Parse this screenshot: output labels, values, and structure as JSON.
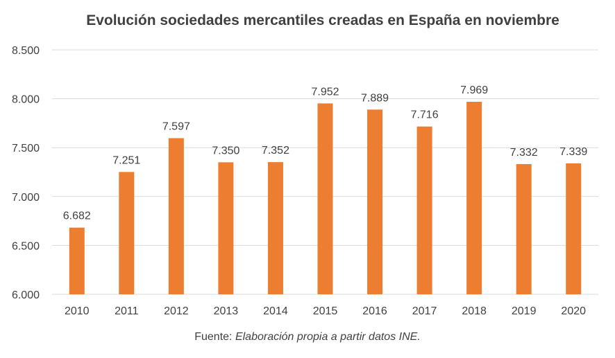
{
  "chart_data": {
    "type": "bar",
    "title": "Evolución sociedades mercantiles creadas en España en noviembre",
    "xlabel": "",
    "ylabel": "",
    "categories": [
      "2010",
      "2011",
      "2012",
      "2013",
      "2014",
      "2015",
      "2016",
      "2017",
      "2018",
      "2019",
      "2020"
    ],
    "values": [
      6682,
      7251,
      7597,
      7350,
      7352,
      7952,
      7889,
      7716,
      7969,
      7332,
      7339
    ],
    "value_labels": [
      "6.682",
      "7.251",
      "7.597",
      "7.350",
      "7.352",
      "7.952",
      "7.889",
      "7.716",
      "7.969",
      "7.332",
      "7.339"
    ],
    "ylim": [
      6000,
      8500
    ],
    "yticks": [
      6000,
      6500,
      7000,
      7500,
      8000,
      8500
    ],
    "ytick_labels": [
      "6.000",
      "6.500",
      "7.000",
      "7.500",
      "8.000",
      "8.500"
    ],
    "grid": true,
    "legend": "none",
    "bar_color": "#ed7d31",
    "grid_color": "#d9d9d9",
    "text_color": "#404040"
  },
  "source": {
    "prefix": "Fuente: ",
    "detail": "Elaboración propia a partir datos INE."
  }
}
